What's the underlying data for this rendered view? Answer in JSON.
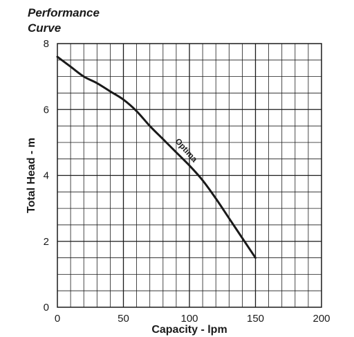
{
  "chart_data": {
    "type": "line",
    "title_lines": [
      "Performance",
      "Curve"
    ],
    "xlabel": "Capacity - lpm",
    "ylabel": "Total Head - m",
    "xlim": [
      0,
      200
    ],
    "ylim": [
      0,
      8
    ],
    "x_ticks": [
      0,
      50,
      100,
      150,
      200
    ],
    "y_ticks": [
      0,
      2,
      4,
      6,
      8
    ],
    "grid": true,
    "series": [
      {
        "name": "Optima",
        "x": [
          0,
          10,
          20,
          30,
          40,
          50,
          60,
          70,
          80,
          90,
          100,
          110,
          120,
          130,
          140,
          150
        ],
        "y": [
          7.6,
          7.3,
          7.0,
          6.8,
          6.55,
          6.3,
          5.95,
          5.5,
          5.1,
          4.7,
          4.3,
          3.85,
          3.3,
          2.7,
          2.1,
          1.5
        ]
      }
    ]
  }
}
